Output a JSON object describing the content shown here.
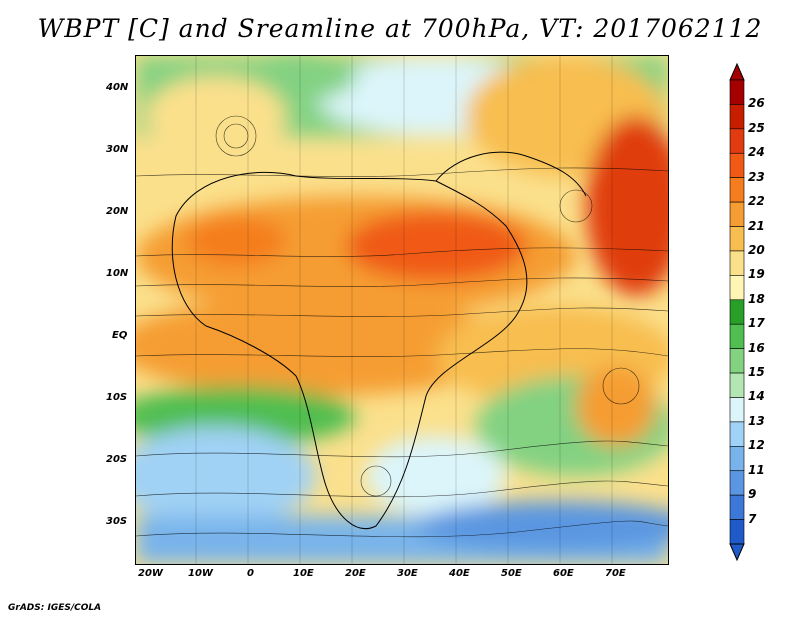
{
  "title": "WBPT [C] and Sreamline at 700hPa, VT: 2017062112",
  "credit": "GrADS: IGES/COLA",
  "axes": {
    "x_ticks": [
      "20W",
      "10W",
      "0",
      "10E",
      "20E",
      "30E",
      "40E",
      "50E",
      "60E",
      "70E"
    ],
    "y_ticks": [
      "40N",
      "30N",
      "20N",
      "10N",
      "EQ",
      "10S",
      "20S",
      "30S"
    ]
  },
  "colorbar": {
    "labels": [
      "26",
      "25",
      "24",
      "23",
      "22",
      "21",
      "20",
      "19",
      "18",
      "17",
      "16",
      "15",
      "14",
      "13",
      "12",
      "11",
      "9",
      "7"
    ],
    "colors": [
      "#a50000",
      "#c81e00",
      "#e03c10",
      "#f05a14",
      "#f57d1e",
      "#f59d32",
      "#f8be50",
      "#fbe08c",
      "#fff5b4",
      "#28a028",
      "#50be50",
      "#82d282",
      "#b4e6b4",
      "#dcf5fa",
      "#a0d2f5",
      "#78b4eb",
      "#5a96e1",
      "#3c78d7",
      "#1e5ac8"
    ]
  },
  "chart_data": {
    "type": "heatmap",
    "variable": "WBPT [C]",
    "level": "700hPa",
    "valid_time": "2017062112",
    "lon_range": [
      "20W",
      "80E"
    ],
    "lat_range": [
      "35S",
      "45N"
    ],
    "color_scale": [
      7,
      9,
      11,
      12,
      13,
      14,
      15,
      16,
      17,
      18,
      19,
      20,
      21,
      22,
      23,
      24,
      25,
      26
    ]
  }
}
